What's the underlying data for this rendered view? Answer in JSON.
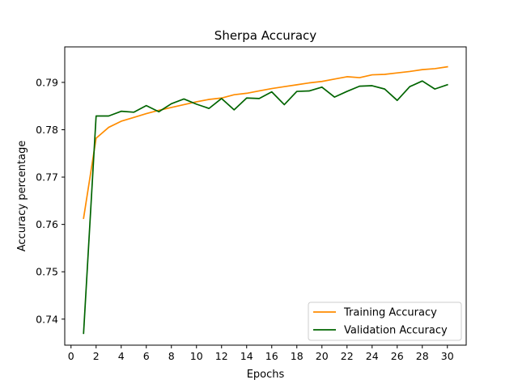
{
  "chart_data": {
    "type": "line",
    "title": "Sherpa Accuracy",
    "xlabel": "Epochs",
    "ylabel": "Accuracy percentage",
    "xlim": [
      -0.5,
      31.5
    ],
    "ylim": [
      0.7345,
      0.7975
    ],
    "xticks": [
      0,
      2,
      4,
      6,
      8,
      10,
      12,
      14,
      16,
      18,
      20,
      22,
      24,
      26,
      28,
      30
    ],
    "yticks": [
      0.74,
      0.75,
      0.76,
      0.77,
      0.78,
      0.79
    ],
    "ytick_labels": [
      "0.74",
      "0.75",
      "0.76",
      "0.77",
      "0.78",
      "0.79"
    ],
    "grid": false,
    "legend_position": "lower-right",
    "x": [
      1,
      2,
      3,
      4,
      5,
      6,
      7,
      8,
      9,
      10,
      11,
      12,
      13,
      14,
      15,
      16,
      17,
      18,
      19,
      20,
      21,
      22,
      23,
      24,
      25,
      26,
      27,
      28,
      29,
      30
    ],
    "series": [
      {
        "name": "Training Accuracy",
        "color": "#ff8c00",
        "values": [
          0.7613,
          0.7782,
          0.7805,
          0.7818,
          0.7826,
          0.7834,
          0.7841,
          0.7847,
          0.7853,
          0.7859,
          0.7864,
          0.7867,
          0.7874,
          0.7877,
          0.7882,
          0.7887,
          0.7891,
          0.7895,
          0.7899,
          0.7902,
          0.7907,
          0.7912,
          0.791,
          0.7916,
          0.7917,
          0.792,
          0.7923,
          0.7927,
          0.7929,
          0.7933
        ]
      },
      {
        "name": "Validation Accuracy",
        "color": "#006400",
        "values": [
          0.737,
          0.7829,
          0.7829,
          0.7839,
          0.7837,
          0.7851,
          0.7838,
          0.7855,
          0.7865,
          0.7854,
          0.7845,
          0.7866,
          0.7842,
          0.7867,
          0.7866,
          0.788,
          0.7853,
          0.7881,
          0.7882,
          0.789,
          0.7869,
          0.7881,
          0.7892,
          0.7893,
          0.7886,
          0.7862,
          0.7891,
          0.7903,
          0.7886,
          0.7895
        ]
      }
    ]
  }
}
